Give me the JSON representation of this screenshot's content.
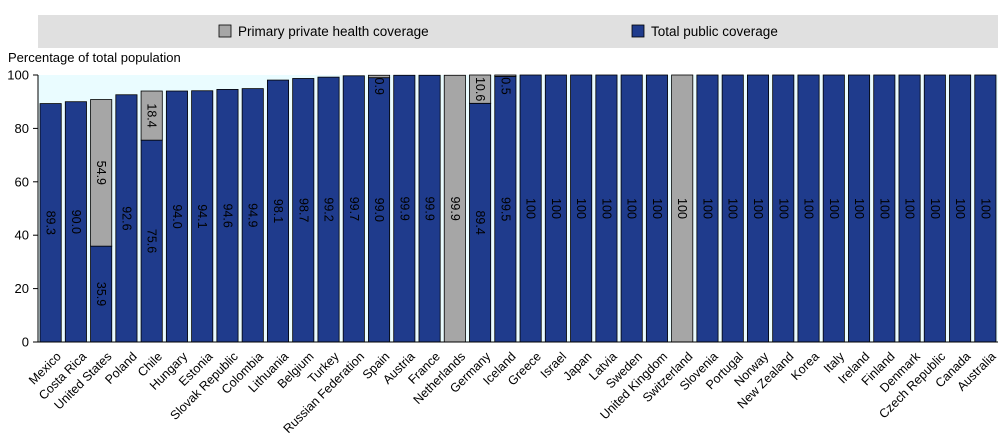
{
  "chart_data": {
    "type": "bar",
    "stacked": true,
    "title": "",
    "xlabel": "",
    "ylabel": "Percentage of total population",
    "ylim": [
      0,
      100
    ],
    "yticks": [
      0,
      20,
      40,
      60,
      80,
      100
    ],
    "grid": false,
    "legend_position": "top",
    "categories": [
      "Mexico",
      "Costa Rica",
      "United States",
      "Poland",
      "Chile",
      "Hungary",
      "Estonia",
      "Slovak Republic",
      "Colombia",
      "Lithuania",
      "Belgium",
      "Turkey",
      "Russian Federation",
      "Spain",
      "Austria",
      "France",
      "Netherlands",
      "Germany",
      "Iceland",
      "Greece",
      "Israel",
      "Japan",
      "Latvia",
      "Sweden",
      "United Kingdom",
      "Switzerland",
      "Slovenia",
      "Portugal",
      "Norway",
      "New Zealand",
      "Korea",
      "Italy",
      "Ireland",
      "Finland",
      "Denmark",
      "Czech Republic",
      "Canada",
      "Australia"
    ],
    "series": [
      {
        "name": "Total public coverage",
        "color": "#1f3b8c",
        "values": [
          89.3,
          90.0,
          35.9,
          92.6,
          75.6,
          94.0,
          94.1,
          94.6,
          94.9,
          98.1,
          98.7,
          99.2,
          99.7,
          99.0,
          99.9,
          99.9,
          0,
          89.4,
          99.5,
          100,
          100,
          100,
          100,
          100,
          100,
          0,
          100,
          100,
          100,
          100,
          100,
          100,
          100,
          100,
          100,
          100,
          100,
          100
        ],
        "labels": [
          "89.3",
          "90.0",
          "35.9",
          "92.6",
          "75.6",
          "94.0",
          "94.1",
          "94.6",
          "94.9",
          "98.1",
          "98.7",
          "99.2",
          "99.7",
          "99.0",
          "99.9",
          "99.9",
          "",
          "89.4",
          "99.5",
          "100",
          "100",
          "100",
          "100",
          "100",
          "100",
          "",
          "100",
          "100",
          "100",
          "100",
          "100",
          "100",
          "100",
          "100",
          "100",
          "100",
          "100",
          "100"
        ]
      },
      {
        "name": "Primary private health coverage",
        "color": "#a6a6a6",
        "values": [
          0,
          0,
          54.9,
          0,
          18.4,
          0,
          0,
          0,
          0,
          0,
          0,
          0,
          0,
          0.9,
          0,
          0,
          99.9,
          10.6,
          0.5,
          0,
          0,
          0,
          0,
          0,
          0,
          100,
          0,
          0,
          0,
          0,
          0,
          0,
          0,
          0,
          0,
          0,
          0,
          0
        ],
        "labels": [
          "",
          "",
          "54.9",
          "",
          "18.4",
          "",
          "",
          "",
          "",
          "",
          "",
          "",
          "",
          "0.9",
          "",
          "",
          "99.9",
          "10.6",
          "0.5",
          "",
          "",
          "",
          "",
          "",
          "",
          "100",
          "",
          "",
          "",
          "",
          "",
          "",
          "",
          "",
          "",
          "",
          "",
          ""
        ]
      }
    ]
  },
  "legend": {
    "private_label": "Primary private health coverage",
    "public_label": "Total public coverage",
    "private_color": "#a6a6a6",
    "public_color": "#1f3b8c"
  }
}
